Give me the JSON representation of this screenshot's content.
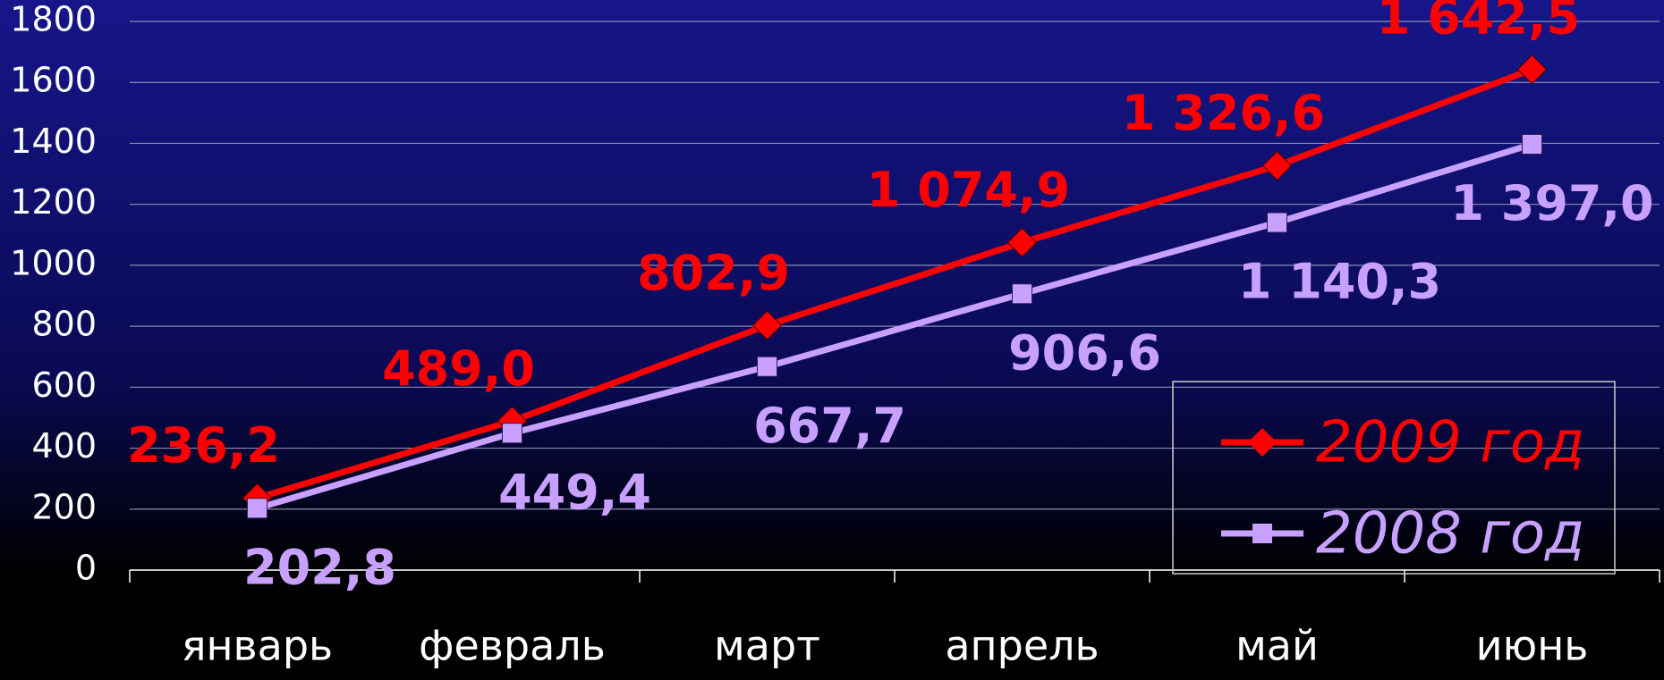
{
  "chart_data": {
    "type": "line",
    "categories": [
      "январь",
      "февраль",
      "март",
      "апрель",
      "май",
      "июнь"
    ],
    "series": [
      {
        "name": "2009 год",
        "color": "#ff0000",
        "marker": "diamond",
        "values": [
          236.2,
          489.0,
          802.9,
          1074.9,
          1326.6,
          1642.5
        ],
        "value_labels": [
          "236,2",
          "489,0",
          "802,9",
          "1 074,9",
          "1 326,6",
          "1 642,5"
        ]
      },
      {
        "name": "2008 год",
        "color": "#c8a0ff",
        "marker": "square",
        "values": [
          202.8,
          449.4,
          667.7,
          906.6,
          1140.3,
          1397.0
        ],
        "value_labels": [
          "202,8",
          "449,4",
          "667,7",
          "906,6",
          "1 140,3",
          "1 397,0"
        ]
      }
    ],
    "ylim": [
      0,
      1800
    ],
    "yticks": [
      0,
      200,
      400,
      600,
      800,
      1000,
      1200,
      1400,
      1600,
      1800
    ],
    "grid": true,
    "legend": "lower right"
  }
}
